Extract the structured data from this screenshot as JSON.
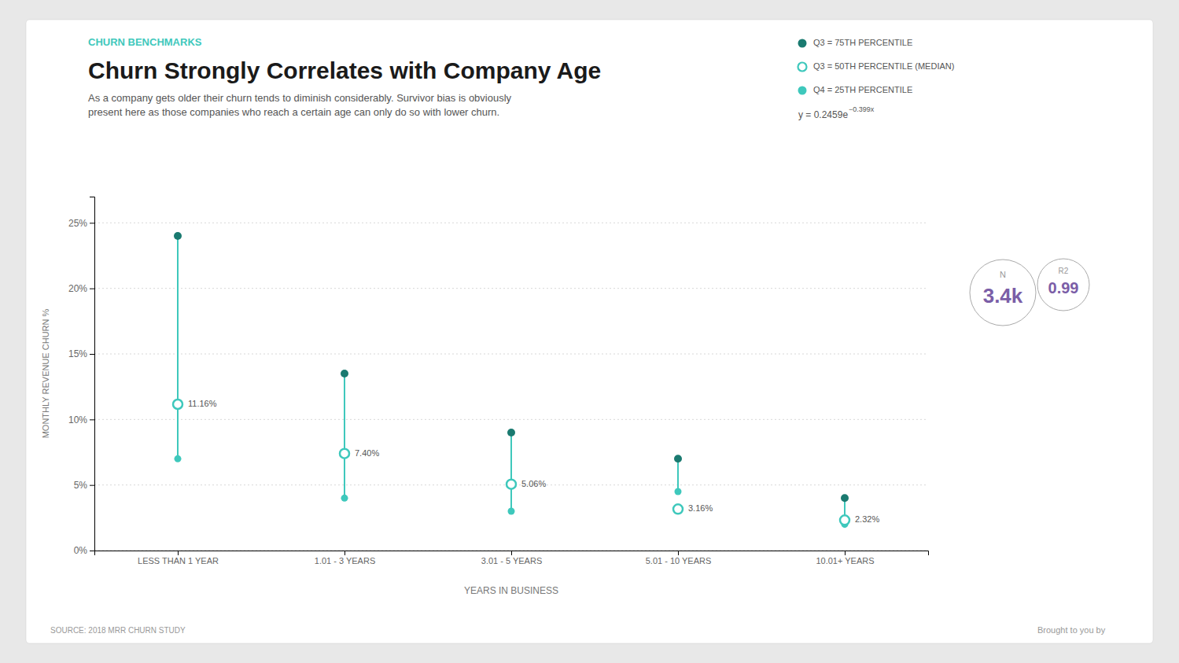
{
  "chart_data": {
    "type": "scatter",
    "title": "Churn Strongly Correlates with Company Age",
    "subtitle": [
      "As a company gets older their churn tends to diminish considerably. Survivor bias is obviously",
      "present here as those companies who reach a certain age can only do so with lower churn."
    ],
    "xlabel": "YEARS IN BUSINESS",
    "ylabel": "MONTHLY REVENUE CHURN %",
    "categories": [
      "LESS THAN 1 YEAR",
      "1.01 - 3 YEARS",
      "3.01 - 5 YEARS",
      "5.01 - 10 YEARS",
      "10.01+ YEARS"
    ],
    "series": [
      {
        "name": "Q3 = 75TH PERCENTILE",
        "color": "#1a7a70",
        "marker": "circle",
        "values": [
          24.0,
          13.5,
          9.0,
          7.0,
          4.0
        ]
      },
      {
        "name": "Q3 = 50TH PERCENTILE (MEDIAN)",
        "color": "#3ec8bc",
        "marker": "ring",
        "values": [
          11.16,
          7.4,
          5.06,
          3.16,
          2.32
        ],
        "value_labels": [
          "11.16%",
          "7.40%",
          "5.06%",
          "3.16%",
          "2.32%"
        ]
      },
      {
        "name": "Q4 = 25TH PERCENTILE",
        "color": "#3ec8bc",
        "marker": "circle",
        "values": [
          7.0,
          4.0,
          3.0,
          4.5,
          2.0
        ]
      }
    ],
    "ylim": [
      0,
      27
    ],
    "yticks": [
      {
        "value": 0,
        "label": "0%"
      },
      {
        "value": 5,
        "label": "5%"
      },
      {
        "value": 10,
        "label": "10%"
      },
      {
        "value": 15,
        "label": "15%"
      },
      {
        "value": 20,
        "label": "20%"
      },
      {
        "value": 25,
        "label": "25%"
      }
    ],
    "grid": true,
    "legend": "top-right",
    "data_labels": true,
    "annotations": [
      "CHURN BENCHMARKS",
      "y = 0.2459e",
      "−0.399x",
      "N",
      "3.4k",
      "R2",
      "0.99",
      "SOURCE: 2018 MRR CHURN STUDY",
      "Brought to you by"
    ]
  }
}
